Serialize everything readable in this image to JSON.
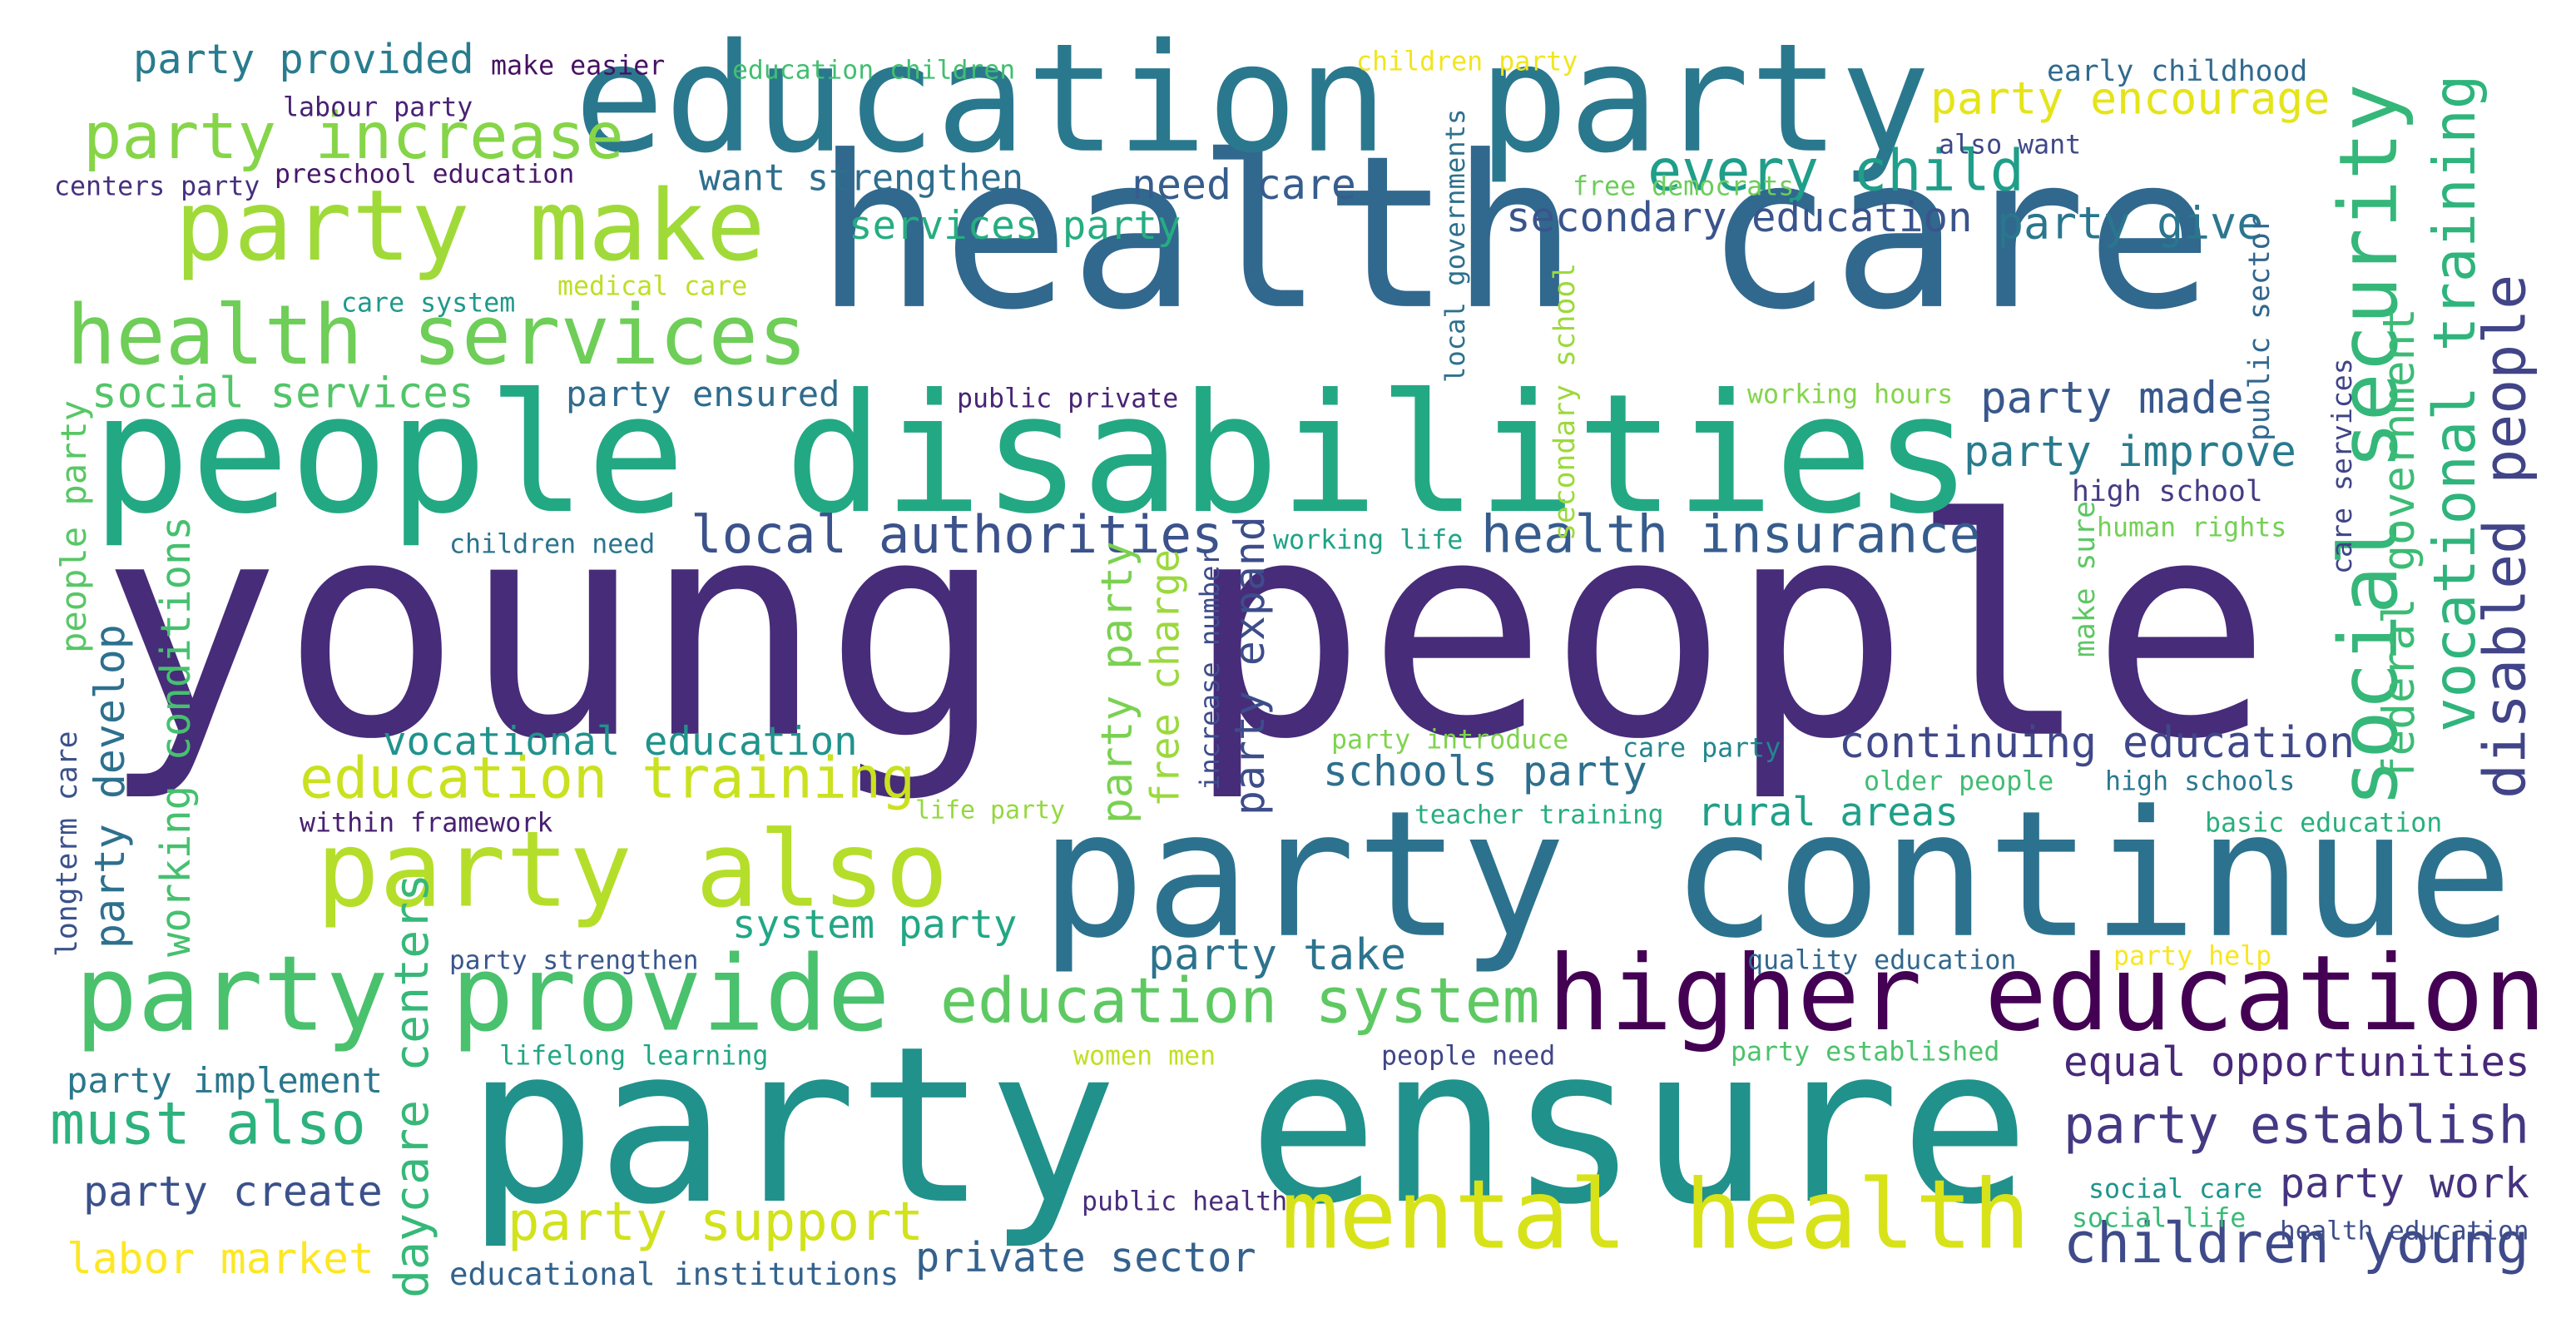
{
  "words": [
    {
      "text": "young people",
      "color": "#472c7a"
    },
    {
      "text": "health care",
      "color": "#31688e"
    },
    {
      "text": "party ensure",
      "color": "#21918c"
    },
    {
      "text": "people disabilities",
      "color": "#23a884"
    },
    {
      "text": "party continue",
      "color": "#2c728e"
    },
    {
      "text": "education party",
      "color": "#2a788e"
    },
    {
      "text": "higher education",
      "color": "#440154"
    },
    {
      "text": "mental health",
      "color": "#d8e219"
    },
    {
      "text": "party provide",
      "color": "#4ac16d"
    },
    {
      "text": "party also",
      "color": "#b5de2b"
    },
    {
      "text": "party make",
      "color": "#a0da39"
    },
    {
      "text": "health services",
      "color": "#6ece58"
    },
    {
      "text": "education system",
      "color": "#5ec962"
    },
    {
      "text": "education training",
      "color": "#cae11f"
    },
    {
      "text": "social security",
      "color": "#35b779"
    },
    {
      "text": "vocational training",
      "color": "#2fb47c"
    },
    {
      "text": "children young",
      "color": "#3e4a89"
    },
    {
      "text": "party increase",
      "color": "#86d549"
    },
    {
      "text": "local authorities",
      "color": "#3b528b"
    },
    {
      "text": "health insurance",
      "color": "#365c8d"
    },
    {
      "text": "party establish",
      "color": "#443983"
    },
    {
      "text": "equal opportunities",
      "color": "#482878"
    },
    {
      "text": "continuing education",
      "color": "#3f4889"
    },
    {
      "text": "disabled people",
      "color": "#414487"
    },
    {
      "text": "party support",
      "color": "#d2e21b"
    },
    {
      "text": "must also",
      "color": "#2db27d"
    },
    {
      "text": "daycare centers",
      "color": "#37b878"
    },
    {
      "text": "every child",
      "color": "#1f9e89"
    },
    {
      "text": "secondary education",
      "color": "#3a548c"
    },
    {
      "text": "social services",
      "color": "#52c569"
    },
    {
      "text": "working conditions",
      "color": "#46c06f"
    },
    {
      "text": "schools party",
      "color": "#2e6f8e"
    },
    {
      "text": "party create",
      "color": "#3b518b"
    },
    {
      "text": "labor market",
      "color": "#fde725"
    },
    {
      "text": "private sector",
      "color": "#34618d"
    },
    {
      "text": "party work",
      "color": "#46337f"
    },
    {
      "text": "care services",
      "color": "#404588"
    },
    {
      "text": "party provided",
      "color": "#287c8e"
    },
    {
      "text": "party encourage",
      "color": "#e5e419"
    },
    {
      "text": "party give",
      "color": "#2a768e"
    },
    {
      "text": "party made",
      "color": "#38588c"
    },
    {
      "text": "party improve",
      "color": "#297b8e"
    },
    {
      "text": "party develop",
      "color": "#2d708e"
    },
    {
      "text": "party party",
      "color": "#7ad151"
    },
    {
      "text": "free charge",
      "color": "#9bd93c"
    },
    {
      "text": "party expand",
      "color": "#3d4d8a"
    },
    {
      "text": "party take",
      "color": "#2c738e"
    },
    {
      "text": "vocational education",
      "color": "#20938c"
    },
    {
      "text": "system party",
      "color": "#22a785"
    },
    {
      "text": "rural areas",
      "color": "#1fa088"
    },
    {
      "text": "need care",
      "color": "#365d8d"
    },
    {
      "text": "want strengthen",
      "color": "#2e6e8e"
    },
    {
      "text": "services party",
      "color": "#26ad81"
    },
    {
      "text": "federal government",
      "color": "#3cbb75"
    },
    {
      "text": "party implement",
      "color": "#2a778e"
    },
    {
      "text": "educational institutions",
      "color": "#33628d"
    },
    {
      "text": "party ensured",
      "color": "#2f6c8e"
    },
    {
      "text": "people party",
      "color": "#58c765"
    },
    {
      "text": "make easier",
      "color": "#471063"
    },
    {
      "text": "education children",
      "color": "#42be71"
    },
    {
      "text": "children party",
      "color": "#f1e51d"
    },
    {
      "text": "early childhood",
      "color": "#306a8e"
    },
    {
      "text": "labour party",
      "color": "#482173"
    },
    {
      "text": "centers party",
      "color": "#46307e"
    },
    {
      "text": "preschool education",
      "color": "#481769"
    },
    {
      "text": "local governments",
      "color": "#2d718e"
    },
    {
      "text": "free democrats",
      "color": "#6ccd5a"
    },
    {
      "text": "also want",
      "color": "#3f4788"
    },
    {
      "text": "care system",
      "color": "#1f998a"
    },
    {
      "text": "medical care",
      "color": "#bddf26"
    },
    {
      "text": "secondary school",
      "color": "#9dd93b"
    },
    {
      "text": "public private",
      "color": "#482475"
    },
    {
      "text": "working hours",
      "color": "#84d44b"
    },
    {
      "text": "public sector",
      "color": "#31668e"
    },
    {
      "text": "high school",
      "color": "#443b84"
    },
    {
      "text": "human rights",
      "color": "#74d055"
    },
    {
      "text": "make sure",
      "color": "#5dc863"
    },
    {
      "text": "children need",
      "color": "#2b748e"
    },
    {
      "text": "working life",
      "color": "#20a386"
    },
    {
      "text": "increase number",
      "color": "#3e4c8a"
    },
    {
      "text": "party introduce",
      "color": "#7fd34e"
    },
    {
      "text": "care party",
      "color": "#24868e"
    },
    {
      "text": "older people",
      "color": "#40bd72"
    },
    {
      "text": "high schools",
      "color": "#2a788e"
    },
    {
      "text": "longterm care",
      "color": "#3b528b"
    },
    {
      "text": "within framework",
      "color": "#482071"
    },
    {
      "text": "life party",
      "color": "#95d840"
    },
    {
      "text": "teacher training",
      "color": "#27ad81"
    },
    {
      "text": "basic education",
      "color": "#29af7f"
    },
    {
      "text": "party strengthen",
      "color": "#39568c"
    },
    {
      "text": "quality education",
      "color": "#31678e"
    },
    {
      "text": "party help",
      "color": "#f8e621"
    },
    {
      "text": "lifelong learning",
      "color": "#21a685"
    },
    {
      "text": "women men",
      "color": "#c2df23"
    },
    {
      "text": "people need",
      "color": "#404688"
    },
    {
      "text": "party established",
      "color": "#4cc26c"
    },
    {
      "text": "public health",
      "color": "#472d7b"
    },
    {
      "text": "social care",
      "color": "#1f958b"
    },
    {
      "text": "social life",
      "color": "#3aba76"
    },
    {
      "text": "health education",
      "color": "#3d4e8a"
    }
  ]
}
